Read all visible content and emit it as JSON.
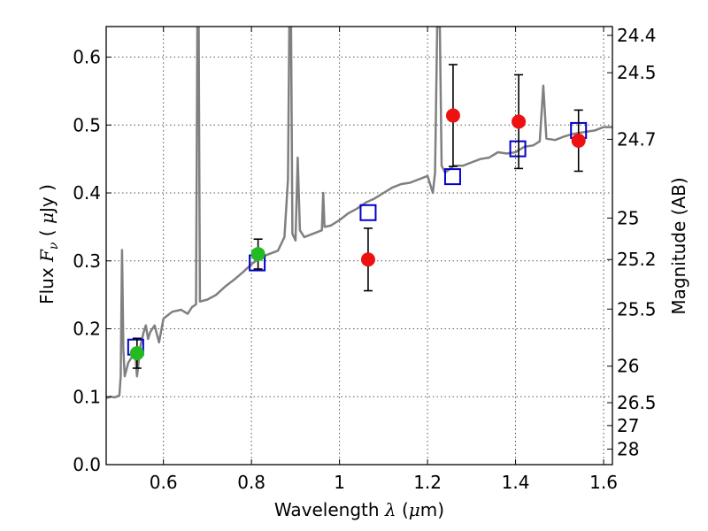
{
  "chart_data": {
    "type": "scatter",
    "xlabel_prefix": "Wavelength",
    "xlabel_symbol": "λ",
    "xlabel_unit_open": "(",
    "xlabel_unit_mu": "μ",
    "xlabel_unit_rest": "m)",
    "ylabel_prefix": "Flux",
    "ylabel_symbol": "F",
    "ylabel_sub": "ν",
    "ylabel_unit_open": "(",
    "ylabel_unit_mu": "μ",
    "ylabel_unit_rest": "Jy )",
    "y2label": "Magnitude (AB)",
    "xlim": [
      0.47,
      1.62
    ],
    "ylim": [
      0.0,
      0.645
    ],
    "grid": true,
    "x_ticks": [
      0.6,
      0.8,
      1.0,
      1.2,
      1.4,
      1.6
    ],
    "x_tick_labels": [
      "0.6",
      "0.8",
      "1",
      "1.2",
      "1.4",
      "1.6"
    ],
    "y_ticks": [
      0.0,
      0.1,
      0.2,
      0.3,
      0.4,
      0.5,
      0.6
    ],
    "y_tick_labels": [
      "0.0",
      "0.1",
      "0.2",
      "0.3",
      "0.4",
      "0.5",
      "0.6"
    ],
    "y2_ticks": [
      {
        "label": "24.4",
        "flux": 0.632
      },
      {
        "label": "24.5",
        "flux": 0.577
      },
      {
        "label": "24.7",
        "flux": 0.479
      },
      {
        "label": "25",
        "flux": 0.363
      },
      {
        "label": "25.2",
        "flux": 0.302
      },
      {
        "label": "25.5",
        "flux": 0.229
      },
      {
        "label": "26",
        "flux": 0.145
      },
      {
        "label": "26.5",
        "flux": 0.0912
      },
      {
        "label": "27",
        "flux": 0.0575
      },
      {
        "label": "28",
        "flux": 0.0229
      }
    ],
    "colors": {
      "spectrum": "#808080",
      "model_box": "#0000cc",
      "obs_red": "#ee1111",
      "obs_green": "#22bb22",
      "errorbar": "#000000",
      "grid": "#555555"
    },
    "spectrum": [
      [
        0.47,
        0.098
      ],
      [
        0.48,
        0.1
      ],
      [
        0.49,
        0.099
      ],
      [
        0.5,
        0.102
      ],
      [
        0.503,
        0.13
      ],
      [
        0.506,
        0.316
      ],
      [
        0.509,
        0.17
      ],
      [
        0.512,
        0.13
      ],
      [
        0.52,
        0.15
      ],
      [
        0.53,
        0.16
      ],
      [
        0.535,
        0.17
      ],
      [
        0.54,
        0.13
      ],
      [
        0.548,
        0.175
      ],
      [
        0.555,
        0.195
      ],
      [
        0.56,
        0.205
      ],
      [
        0.565,
        0.185
      ],
      [
        0.57,
        0.195
      ],
      [
        0.58,
        0.205
      ],
      [
        0.59,
        0.18
      ],
      [
        0.6,
        0.215
      ],
      [
        0.62,
        0.225
      ],
      [
        0.64,
        0.228
      ],
      [
        0.655,
        0.222
      ],
      [
        0.665,
        0.232
      ],
      [
        0.674,
        0.236
      ],
      [
        0.677,
        0.645
      ],
      [
        0.68,
        0.645
      ],
      [
        0.683,
        0.24
      ],
      [
        0.7,
        0.243
      ],
      [
        0.72,
        0.25
      ],
      [
        0.74,
        0.262
      ],
      [
        0.76,
        0.272
      ],
      [
        0.78,
        0.283
      ],
      [
        0.8,
        0.295
      ],
      [
        0.82,
        0.305
      ],
      [
        0.84,
        0.31
      ],
      [
        0.86,
        0.315
      ],
      [
        0.875,
        0.335
      ],
      [
        0.883,
        0.42
      ],
      [
        0.886,
        0.645
      ],
      [
        0.89,
        0.645
      ],
      [
        0.893,
        0.34
      ],
      [
        0.9,
        0.33
      ],
      [
        0.905,
        0.452
      ],
      [
        0.91,
        0.345
      ],
      [
        0.92,
        0.335
      ],
      [
        0.94,
        0.34
      ],
      [
        0.96,
        0.345
      ],
      [
        0.963,
        0.4
      ],
      [
        0.966,
        0.35
      ],
      [
        0.98,
        0.352
      ],
      [
        1.0,
        0.36
      ],
      [
        1.02,
        0.37
      ],
      [
        1.04,
        0.377
      ],
      [
        1.06,
        0.386
      ],
      [
        1.08,
        0.392
      ],
      [
        1.1,
        0.4
      ],
      [
        1.12,
        0.408
      ],
      [
        1.14,
        0.413
      ],
      [
        1.16,
        0.415
      ],
      [
        1.18,
        0.42
      ],
      [
        1.2,
        0.425
      ],
      [
        1.212,
        0.4
      ],
      [
        1.217,
        0.43
      ],
      [
        1.222,
        0.645
      ],
      [
        1.228,
        0.645
      ],
      [
        1.232,
        0.44
      ],
      [
        1.24,
        0.43
      ],
      [
        1.26,
        0.44
      ],
      [
        1.28,
        0.44
      ],
      [
        1.3,
        0.445
      ],
      [
        1.32,
        0.45
      ],
      [
        1.34,
        0.452
      ],
      [
        1.36,
        0.46
      ],
      [
        1.38,
        0.458
      ],
      [
        1.4,
        0.46
      ],
      [
        1.42,
        0.468
      ],
      [
        1.44,
        0.47
      ],
      [
        1.455,
        0.476
      ],
      [
        1.463,
        0.558
      ],
      [
        1.47,
        0.48
      ],
      [
        1.49,
        0.478
      ],
      [
        1.51,
        0.483
      ],
      [
        1.53,
        0.487
      ],
      [
        1.55,
        0.489
      ],
      [
        1.58,
        0.492
      ],
      [
        1.6,
        0.497
      ],
      [
        1.62,
        0.497
      ]
    ],
    "model_points": [
      {
        "x": 0.537,
        "y": 0.173
      },
      {
        "x": 0.813,
        "y": 0.297
      },
      {
        "x": 1.065,
        "y": 0.371
      },
      {
        "x": 1.257,
        "y": 0.424
      },
      {
        "x": 1.405,
        "y": 0.465
      },
      {
        "x": 1.543,
        "y": 0.492
      }
    ],
    "observed_points": [
      {
        "x": 0.54,
        "y": 0.164,
        "yerr": 0.022,
        "color": "green"
      },
      {
        "x": 0.815,
        "y": 0.31,
        "yerr": 0.022,
        "color": "green"
      },
      {
        "x": 1.065,
        "y": 0.302,
        "yerr": 0.046,
        "color": "red"
      },
      {
        "x": 1.258,
        "y": 0.514,
        "yerr": 0.075,
        "color": "red"
      },
      {
        "x": 1.407,
        "y": 0.505,
        "yerr": 0.069,
        "color": "red"
      },
      {
        "x": 1.543,
        "y": 0.477,
        "yerr": 0.045,
        "color": "red"
      }
    ]
  }
}
